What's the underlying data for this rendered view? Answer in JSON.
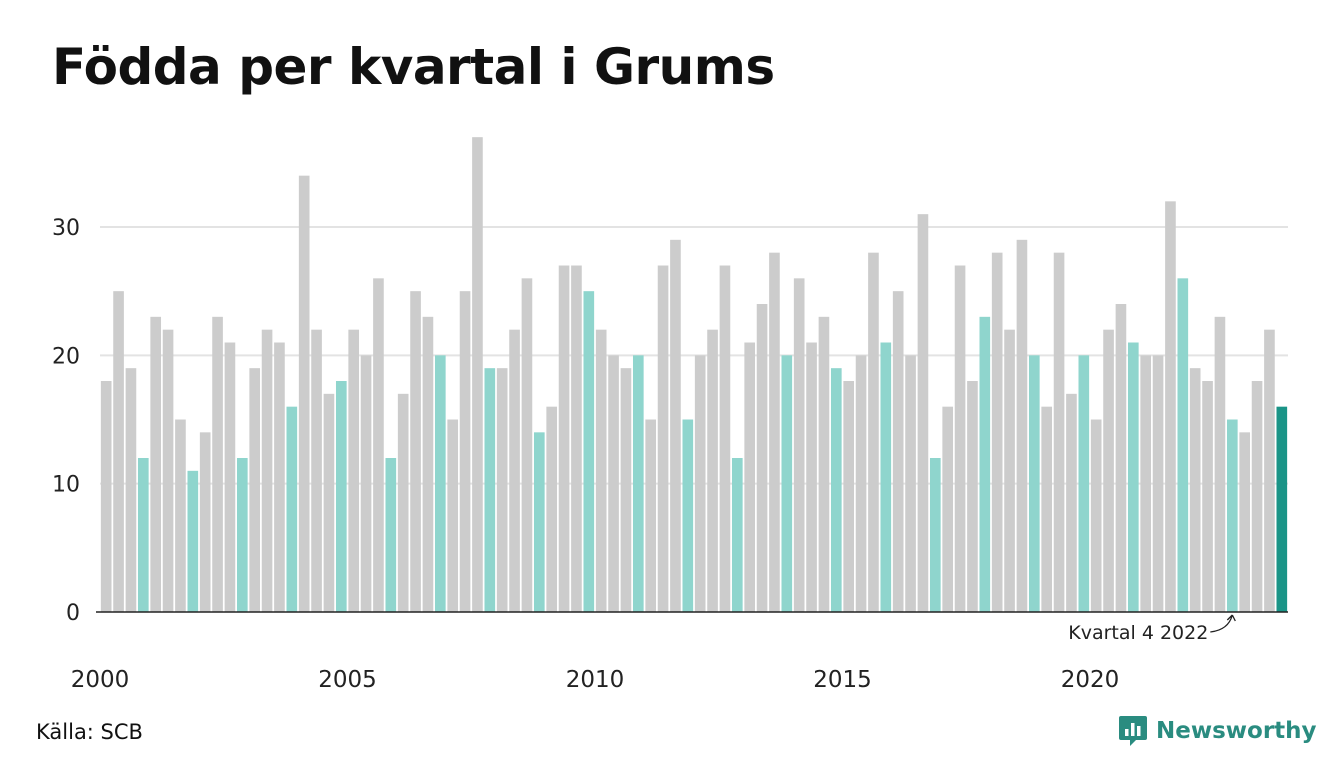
{
  "title": "Födda per kvartal i Grums",
  "source": "Källa: SCB",
  "brand": "Newsworthy",
  "colors": {
    "gray": "#cccccc",
    "highlight": "#8fd5cd",
    "last": "#1a9487",
    "brand": "#2a8c80",
    "grid": "#e3e3e3",
    "axis": "#222222"
  },
  "chart_data": {
    "type": "bar",
    "title": "Födda per kvartal i Grums",
    "xlabel": "",
    "ylabel": "",
    "start_year": 2000,
    "ylim": [
      0,
      38
    ],
    "yticks": [
      0,
      10,
      20,
      30
    ],
    "x_tick_labels": [
      "2000",
      "2005",
      "2010",
      "2015",
      "2020"
    ],
    "highlight_rule": "Kvartal 4 of each year highlighted, latest quarter emphasized",
    "annotation": "Kvartal 4 2022",
    "values": [
      18,
      25,
      19,
      12,
      23,
      22,
      15,
      11,
      14,
      23,
      21,
      12,
      19,
      22,
      21,
      16,
      34,
      22,
      17,
      18,
      22,
      20,
      26,
      12,
      17,
      25,
      23,
      20,
      15,
      25,
      37,
      19,
      19,
      22,
      26,
      14,
      16,
      27,
      27,
      25,
      22,
      20,
      19,
      20,
      15,
      27,
      29,
      15,
      20,
      22,
      27,
      12,
      21,
      24,
      28,
      20,
      26,
      21,
      23,
      19,
      18,
      20,
      28,
      21,
      25,
      20,
      31,
      12,
      16,
      27,
      18,
      23,
      28,
      22,
      29,
      20,
      16,
      28,
      17,
      20,
      15,
      22,
      24,
      21,
      20,
      20,
      32,
      26,
      19,
      18,
      23,
      15,
      14,
      18,
      22,
      16
    ]
  }
}
